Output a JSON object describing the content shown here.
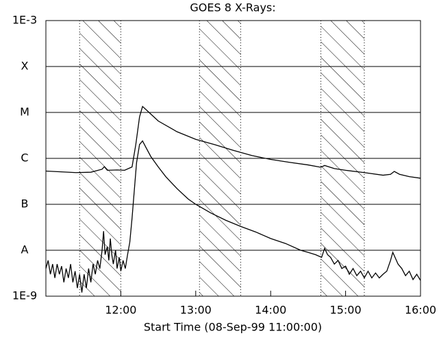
{
  "chart_data": {
    "type": "line",
    "title": "GOES 8 X-Rays:",
    "x_label": "Start Time (08-Sep-99 11:00:00)",
    "log_y": true,
    "grid": true,
    "xlim": [
      11,
      16
    ],
    "xticks": [
      {
        "value": 12,
        "label": "12:00"
      },
      {
        "value": 13,
        "label": "13:00"
      },
      {
        "value": 14,
        "label": "14:00"
      },
      {
        "value": 15,
        "label": "15:00"
      },
      {
        "value": 16,
        "label": "16:00"
      }
    ],
    "ylim": [
      1e-09,
      0.001
    ],
    "yticks": [
      {
        "value": 1e-09,
        "label": "1E-9"
      },
      {
        "value": 1e-08,
        "label": "A"
      },
      {
        "value": 1e-07,
        "label": "B"
      },
      {
        "value": 1e-06,
        "label": "C"
      },
      {
        "value": 1e-05,
        "label": "M"
      },
      {
        "value": 0.0001,
        "label": "X"
      },
      {
        "value": 0.001,
        "label": "1E-3"
      }
    ],
    "shaded": [
      [
        11.45,
        12.0
      ],
      [
        13.05,
        13.6
      ],
      [
        14.67,
        15.25
      ]
    ],
    "series": [
      {
        "color": "#000000",
        "x": [
          11.0,
          11.2,
          11.4,
          11.6,
          11.75,
          11.78,
          11.82,
          11.95,
          12.05,
          12.15,
          12.2,
          12.25,
          12.29,
          12.35,
          12.5,
          12.75,
          13.0,
          13.25,
          13.5,
          13.75,
          14.0,
          14.25,
          14.5,
          14.67,
          14.72,
          14.85,
          15.0,
          15.25,
          15.5,
          15.6,
          15.65,
          15.72,
          15.85,
          16.0
        ],
        "values": [
          5.3e-07,
          5.1e-07,
          4.9e-07,
          5e-07,
          5.8e-07,
          6.6e-07,
          5.5e-07,
          5.6e-07,
          5.5e-07,
          6.5e-07,
          2e-06,
          8e-06,
          1.35e-05,
          1.1e-05,
          6.5e-06,
          3.8e-06,
          2.6e-06,
          2e-06,
          1.5e-06,
          1.15e-06,
          9.5e-07,
          8.2e-07,
          7.2e-07,
          6.4e-07,
          7e-07,
          6e-07,
          5.5e-07,
          4.9e-07,
          4.3e-07,
          4.5e-07,
          5.2e-07,
          4.5e-07,
          4e-07,
          3.7e-07
        ]
      },
      {
        "color": "#000000",
        "x": [
          11.0,
          11.03,
          11.06,
          11.09,
          11.12,
          11.15,
          11.18,
          11.21,
          11.24,
          11.27,
          11.3,
          11.33,
          11.36,
          11.39,
          11.42,
          11.45,
          11.48,
          11.51,
          11.54,
          11.57,
          11.6,
          11.63,
          11.66,
          11.69,
          11.72,
          11.75,
          11.77,
          11.79,
          11.82,
          11.84,
          11.86,
          11.88,
          11.9,
          11.93,
          11.95,
          11.98,
          12.0,
          12.03,
          12.06,
          12.09,
          12.12,
          12.15,
          12.18,
          12.21,
          12.25,
          12.29,
          12.33,
          12.4,
          12.5,
          12.6,
          12.75,
          12.9,
          13.0,
          13.2,
          13.4,
          13.6,
          13.8,
          14.0,
          14.2,
          14.4,
          14.5,
          14.6,
          14.68,
          14.72,
          14.76,
          14.8,
          14.85,
          14.9,
          14.95,
          15.0,
          15.05,
          15.1,
          15.15,
          15.2,
          15.25,
          15.3,
          15.35,
          15.4,
          15.45,
          15.5,
          15.55,
          15.6,
          15.63,
          15.66,
          15.7,
          15.75,
          15.8,
          15.85,
          15.9,
          15.95,
          16.0
        ],
        "values": [
          4e-09,
          6e-09,
          3e-09,
          5e-09,
          2.5e-09,
          5e-09,
          3e-09,
          4.5e-09,
          2e-09,
          4e-09,
          2.5e-09,
          5e-09,
          2e-09,
          3.5e-09,
          1.5e-09,
          3e-09,
          1.2e-09,
          3e-09,
          1.5e-09,
          4e-09,
          2e-09,
          5e-09,
          3e-09,
          6e-09,
          4e-09,
          1e-08,
          2.6e-08,
          8e-09,
          1.2e-08,
          6e-09,
          1.8e-08,
          8e-09,
          5e-09,
          1e-08,
          4e-09,
          7e-09,
          3.5e-09,
          6e-09,
          4e-09,
          8e-09,
          1.5e-08,
          5e-08,
          2e-07,
          8e-07,
          2e-06,
          2.4e-06,
          1.8e-06,
          1.1e-06,
          6.5e-07,
          4e-07,
          2.2e-07,
          1.3e-07,
          1e-07,
          6.5e-08,
          4.5e-08,
          3.3e-08,
          2.5e-08,
          1.8e-08,
          1.4e-08,
          1e-08,
          9e-09,
          8e-09,
          7e-09,
          1.1e-08,
          8e-09,
          7e-09,
          5e-09,
          6e-09,
          4e-09,
          4.5e-09,
          3e-09,
          4e-09,
          2.8e-09,
          3.5e-09,
          2.5e-09,
          3.5e-09,
          2.5e-09,
          3.2e-09,
          2.5e-09,
          3e-09,
          3.5e-09,
          6e-09,
          9e-09,
          7e-09,
          5e-09,
          4e-09,
          2.8e-09,
          3.5e-09,
          2.3e-09,
          3e-09,
          2.2e-09
        ]
      }
    ]
  }
}
